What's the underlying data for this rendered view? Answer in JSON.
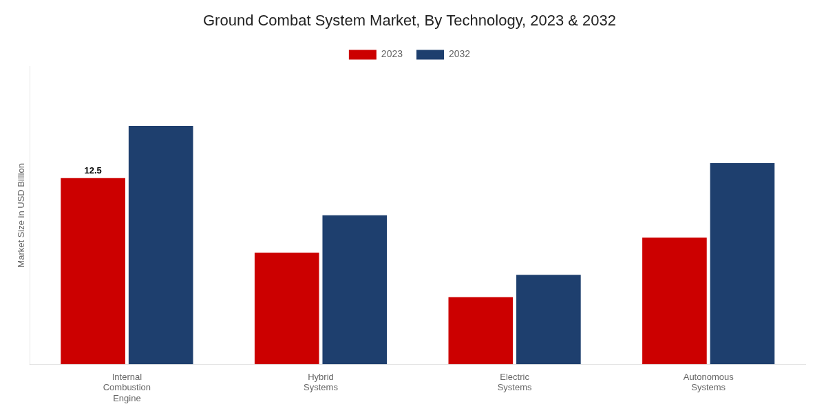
{
  "chart_data": {
    "type": "bar",
    "title": "Ground Combat System Market, By Technology, 2023 & 2032",
    "y_label": "Market Size in USD Billion",
    "categories": [
      "Internal\nCombustion\nEngine",
      "Hybrid\nSystems",
      "Electric\nSystems",
      "Autonomous\nSystems"
    ],
    "series": [
      {
        "name": "2023",
        "color": "#cc0000",
        "values": [
          12.5,
          7.5,
          4.5,
          8.5
        ]
      },
      {
        "name": "2032",
        "color": "#1e3f6e",
        "values": [
          16.0,
          10.0,
          6.0,
          13.5
        ]
      }
    ],
    "annotations": [
      {
        "text": "12.5",
        "series": "2023",
        "category": "Internal\nCombustion\nEngine"
      }
    ],
    "ylim": [
      0,
      20
    ],
    "yticks": [],
    "grid": false,
    "legend": "top",
    "tick_labels": "x"
  }
}
